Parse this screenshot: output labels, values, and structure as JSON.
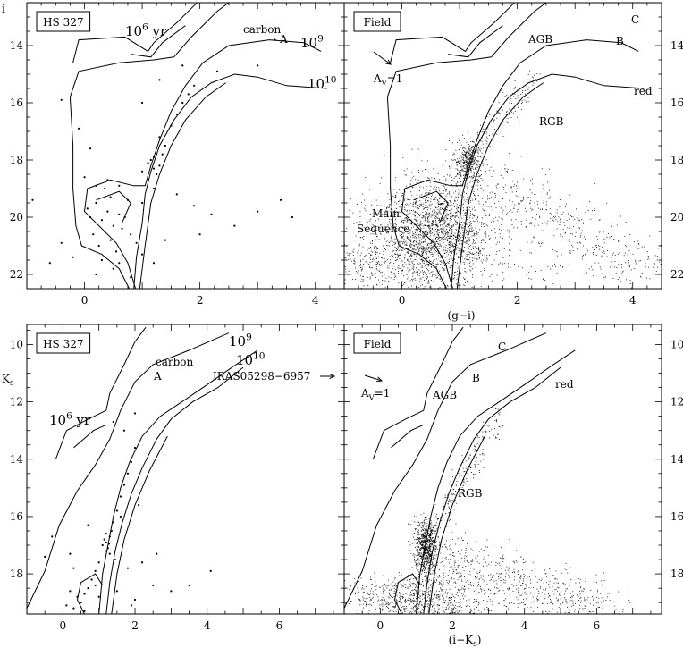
{
  "figure": {
    "shared_labels": {
      "top_ylabel": "i",
      "top_xlabel": "(g−i)",
      "bottom_ylabel_main": "K",
      "bottom_ylabel_sub": "s",
      "bottom_xlabel_main": "(i−K",
      "bottom_xlabel_sub": "s",
      "bottom_xlabel_close": ")"
    }
  },
  "chart_data": [
    {
      "type": "scatter",
      "panel": "top-left",
      "box_label": "HS 327",
      "xlim": [
        -1.0,
        4.5
      ],
      "ylim": [
        22.5,
        12.5
      ],
      "x_ticks": [
        0,
        2,
        4
      ],
      "y_ticks": [
        14,
        16,
        18,
        20,
        22
      ],
      "annotations": [
        {
          "name": "isochrone-1e6-label",
          "base": "10",
          "sup": "6",
          "rest": " yr"
        },
        {
          "name": "carbon-label",
          "text": "carbon"
        },
        {
          "name": "point-a-label",
          "text": "A"
        },
        {
          "name": "isochrone-1e9-label",
          "base": "10",
          "sup": "9",
          "rest": ""
        },
        {
          "name": "isochrone-1e10-label",
          "base": "10",
          "sup": "10",
          "rest": ""
        }
      ],
      "series": [
        {
          "points": [
            [
              1.2,
              18.3
            ],
            [
              1.1,
              18.1
            ],
            [
              1.3,
              18.2
            ],
            [
              1.2,
              17.9
            ],
            [
              1.4,
              17.5
            ],
            [
              1.3,
              17.2
            ],
            [
              1.5,
              16.8
            ],
            [
              1.6,
              16.4
            ],
            [
              1.7,
              16.0
            ],
            [
              1.8,
              15.7
            ],
            [
              1.9,
              15.4
            ],
            [
              1.0,
              18.4
            ],
            [
              1.15,
              18.0
            ],
            [
              1.25,
              18.5
            ],
            [
              1.35,
              17.8
            ],
            [
              0.2,
              19.5
            ],
            [
              0.4,
              19.8
            ],
            [
              0.3,
              20.1
            ],
            [
              0.5,
              20.3
            ],
            [
              0.1,
              20.0
            ],
            [
              0.6,
              19.9
            ],
            [
              0.35,
              20.5
            ],
            [
              0.45,
              20.8
            ],
            [
              0.25,
              21.0
            ],
            [
              0.55,
              21.2
            ],
            [
              0.15,
              20.6
            ],
            [
              0.65,
              20.4
            ],
            [
              0.05,
              19.7
            ],
            [
              0.7,
              20.0
            ],
            [
              0.8,
              20.6
            ],
            [
              0.9,
              20.9
            ],
            [
              1.0,
              21.3
            ],
            [
              0.3,
              21.5
            ],
            [
              0.5,
              21.8
            ],
            [
              0.2,
              22.0
            ],
            [
              -0.2,
              21.4
            ],
            [
              -0.4,
              20.9
            ],
            [
              -0.6,
              21.6
            ],
            [
              -1.1,
              22.0
            ],
            [
              -0.9,
              19.4
            ],
            [
              1.6,
              19.2
            ],
            [
              1.9,
              19.6
            ],
            [
              2.2,
              19.9
            ],
            [
              2.6,
              20.3
            ],
            [
              3.0,
              19.8
            ],
            [
              3.4,
              19.4
            ],
            [
              3.6,
              20.0
            ],
            [
              2.0,
              20.6
            ],
            [
              1.4,
              20.8
            ],
            [
              1.2,
              21.6
            ],
            [
              0.8,
              22.1
            ],
            [
              1.0,
              19.5
            ],
            [
              1.2,
              19.0
            ],
            [
              0.0,
              18.6
            ],
            [
              0.2,
              18.9
            ],
            [
              0.4,
              18.7
            ],
            [
              0.6,
              18.9
            ],
            [
              0.1,
              17.6
            ],
            [
              -0.4,
              15.9
            ],
            [
              1.0,
              16.0
            ],
            [
              1.7,
              14.7
            ],
            [
              2.3,
              14.9
            ],
            [
              3.0,
              14.7
            ],
            [
              3.3,
              13.8
            ],
            [
              1.3,
              15.2
            ],
            [
              -0.1,
              16.9
            ],
            [
              0.45,
              19.3
            ],
            [
              0.35,
              19.0
            ],
            [
              0.75,
              19.4
            ],
            [
              0.6,
              21.6
            ]
          ]
        }
      ]
    },
    {
      "type": "scatter",
      "panel": "top-right",
      "box_label": "Field",
      "xlim": [
        -1.0,
        4.5
      ],
      "ylim": [
        22.5,
        12.5
      ],
      "x_ticks": [
        0,
        2,
        4
      ],
      "y_ticks": [
        14,
        16,
        18,
        20,
        22
      ],
      "annotations": [
        {
          "name": "extinction-label",
          "base": "A",
          "sub": "V",
          "rest": "=1"
        },
        {
          "name": "agb-label",
          "text": "AGB"
        },
        {
          "name": "point-b-label",
          "text": "B"
        },
        {
          "name": "point-c-label",
          "text": "C"
        },
        {
          "name": "red-label",
          "text": "red"
        },
        {
          "name": "rgb-label",
          "text": "RGB"
        },
        {
          "name": "main-sequence-label-1",
          "text": "Main"
        },
        {
          "name": "main-sequence-label-2",
          "text": "Sequence"
        }
      ]
    },
    {
      "type": "scatter",
      "panel": "bottom-left",
      "box_label": "HS 327",
      "xlim": [
        -1.0,
        7.8
      ],
      "ylim": [
        19.4,
        9.3
      ],
      "x_ticks": [
        0,
        2,
        4,
        6
      ],
      "y_ticks": [
        10,
        12,
        14,
        16,
        18
      ],
      "annotations": [
        {
          "name": "isochrone-1e9-label",
          "base": "10",
          "sup": "9",
          "rest": ""
        },
        {
          "name": "isochrone-1e10-label",
          "base": "10",
          "sup": "10",
          "rest": ""
        },
        {
          "name": "carbon-label",
          "text": "carbon"
        },
        {
          "name": "point-a-label",
          "text": "A"
        },
        {
          "name": "iras-label",
          "text": "IRAS05298−6957"
        },
        {
          "name": "isochrone-1e6-label",
          "base": "10",
          "sup": "6",
          "rest": " yr"
        }
      ],
      "series": [
        {
          "points": [
            [
              1.2,
              16.9
            ],
            [
              1.3,
              16.7
            ],
            [
              1.25,
              17.1
            ],
            [
              1.15,
              16.8
            ],
            [
              1.35,
              16.5
            ],
            [
              1.4,
              16.2
            ],
            [
              1.5,
              15.8
            ],
            [
              1.6,
              15.3
            ],
            [
              1.7,
              14.9
            ],
            [
              1.8,
              14.5
            ],
            [
              1.9,
              14.1
            ],
            [
              2.0,
              13.6
            ],
            [
              1.1,
              17.0
            ],
            [
              1.3,
              17.3
            ],
            [
              1.0,
              17.6
            ],
            [
              0.9,
              17.9
            ],
            [
              0.8,
              18.2
            ],
            [
              0.7,
              18.5
            ],
            [
              0.6,
              18.7
            ],
            [
              0.5,
              19.0
            ],
            [
              0.4,
              18.8
            ],
            [
              0.3,
              19.2
            ],
            [
              0.2,
              18.6
            ],
            [
              0.1,
              19.1
            ],
            [
              0.6,
              19.3
            ],
            [
              1.0,
              18.8
            ],
            [
              1.5,
              18.6
            ],
            [
              2.0,
              18.9
            ],
            [
              2.5,
              18.4
            ],
            [
              3.0,
              18.6
            ],
            [
              3.5,
              18.4
            ],
            [
              2.2,
              17.6
            ],
            [
              2.6,
              17.3
            ],
            [
              1.8,
              17.8
            ],
            [
              1.6,
              16.0
            ],
            [
              2.1,
              15.6
            ],
            [
              -0.3,
              16.7
            ],
            [
              -0.5,
              17.4
            ],
            [
              0.3,
              17.8
            ],
            [
              0.7,
              16.3
            ],
            [
              1.7,
              13.0
            ],
            [
              2.0,
              12.4
            ],
            [
              1.4,
              12.7
            ],
            [
              1.2,
              16.6
            ],
            [
              1.28,
              16.95
            ],
            [
              1.18,
              17.2
            ],
            [
              1.45,
              17.5
            ],
            [
              0.9,
              18.4
            ],
            [
              1.9,
              19.1
            ],
            [
              4.1,
              17.9
            ],
            [
              0.2,
              17.3
            ]
          ]
        }
      ]
    },
    {
      "type": "scatter",
      "panel": "bottom-right",
      "box_label": "Field",
      "xlim": [
        -1.0,
        7.8
      ],
      "ylim": [
        19.4,
        9.3
      ],
      "x_ticks": [
        0,
        2,
        4,
        6
      ],
      "y_ticks": [
        10,
        12,
        14,
        16,
        18
      ],
      "annotations": [
        {
          "name": "extinction-label",
          "base": "A",
          "sub": "V",
          "rest": "=1"
        },
        {
          "name": "agb-label",
          "text": "AGB"
        },
        {
          "name": "point-b-label",
          "text": "B"
        },
        {
          "name": "point-c-label",
          "text": "C"
        },
        {
          "name": "red-label",
          "text": "red"
        },
        {
          "name": "rgb-label",
          "text": "RGB"
        }
      ]
    }
  ]
}
